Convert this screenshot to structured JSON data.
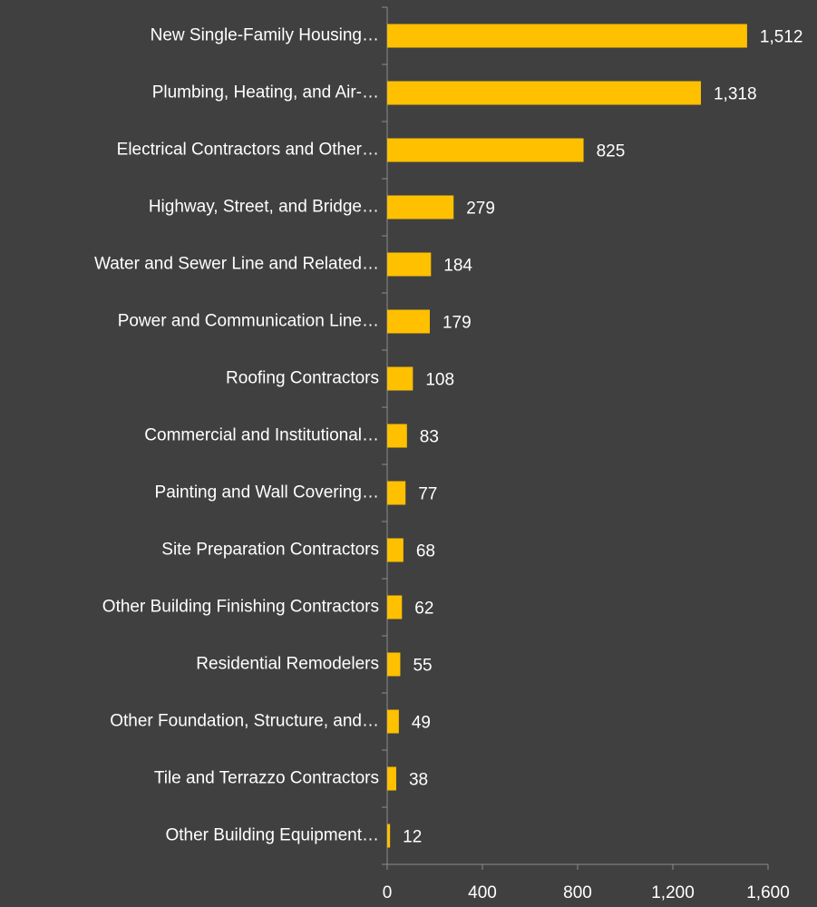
{
  "chart_data": {
    "type": "barh",
    "categories": [
      "New Single-Family Housing…",
      "Plumbing, Heating, and Air-…",
      "Electrical Contractors and Other…",
      "Highway, Street, and Bridge…",
      "Water and Sewer Line and Related…",
      "Power and Communication Line…",
      "Roofing Contractors",
      "Commercial and Institutional…",
      "Painting and Wall Covering…",
      "Site Preparation Contractors",
      "Other Building Finishing Contractors",
      "Residential Remodelers",
      "Other Foundation, Structure, and…",
      "Tile and Terrazzo Contractors",
      "Other Building Equipment…"
    ],
    "values": [
      1512,
      1318,
      825,
      279,
      184,
      179,
      108,
      83,
      77,
      68,
      62,
      55,
      49,
      38,
      12
    ],
    "value_labels": [
      "1,512",
      "1,318",
      "825",
      "279",
      "184",
      "179",
      "108",
      "83",
      "77",
      "68",
      "62",
      "55",
      "49",
      "38",
      "12"
    ],
    "color": "#ffc000",
    "xlim": [
      0,
      1600
    ],
    "xticks": [
      0,
      400,
      800,
      {
        "value": 1200,
        "label": "1,200"
      },
      {
        "value": 1600,
        "label": "1,600"
      }
    ],
    "grid": false
  }
}
